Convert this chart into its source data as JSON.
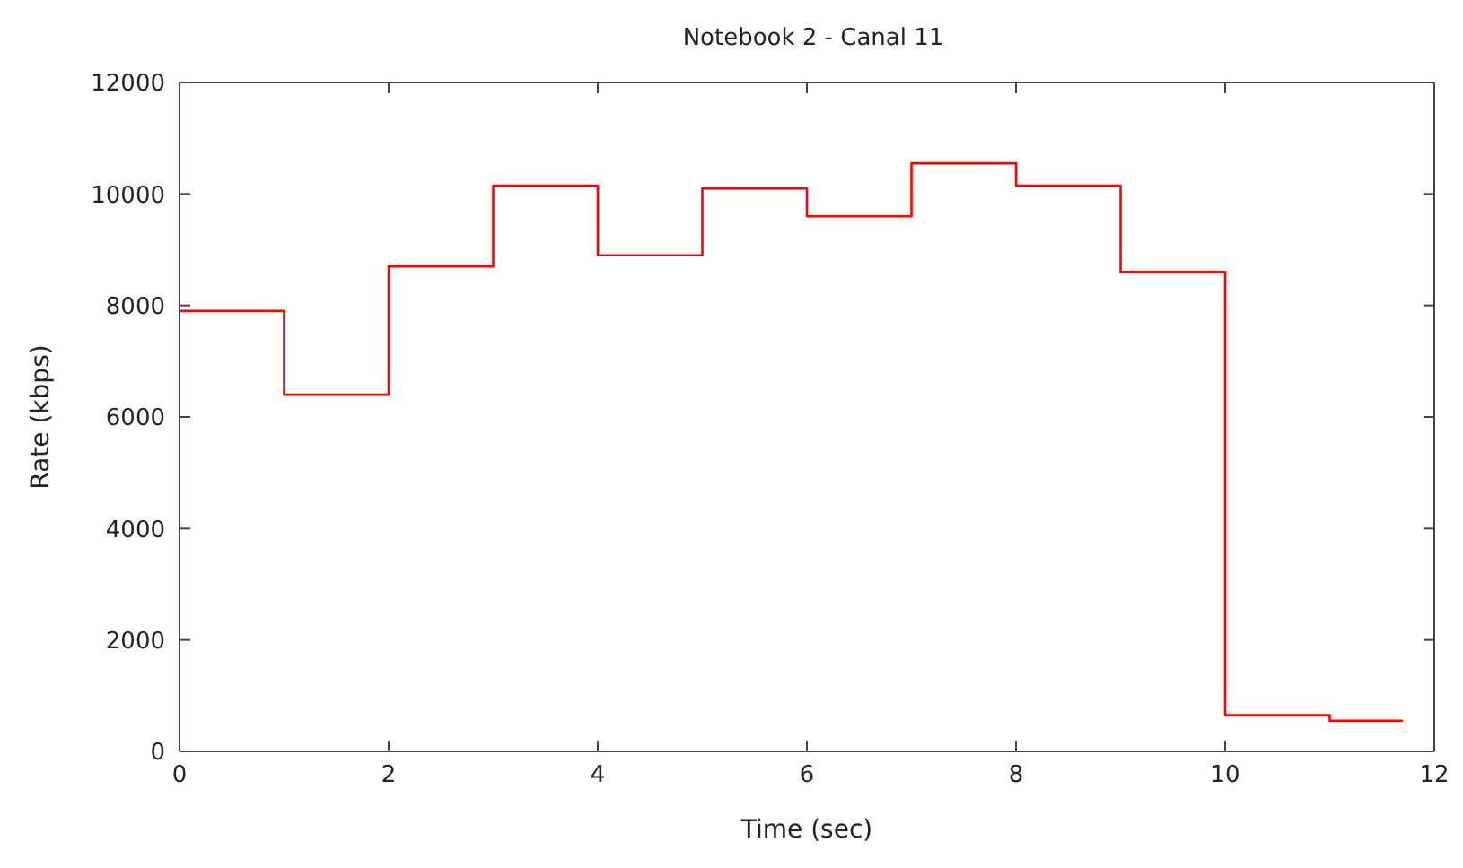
{
  "chart_data": {
    "type": "step",
    "title": "Notebook 2 - Canal 11",
    "xlabel": "Time (sec)",
    "ylabel": "Rate (kbps)",
    "x": [
      0,
      1,
      2,
      3,
      4,
      5,
      6,
      7,
      8,
      9,
      10,
      11,
      11.7
    ],
    "series": [
      {
        "color": "#ff0000",
        "values": [
          7900,
          6400,
          8700,
          10150,
          8900,
          10100,
          9600,
          10550,
          10150,
          8600,
          650,
          550,
          550
        ]
      }
    ],
    "xlim": [
      0,
      12
    ],
    "xticks": [
      0,
      2,
      4,
      6,
      8,
      10,
      12
    ],
    "ylim": [
      0,
      12000
    ],
    "yticks": [
      0,
      2000,
      4000,
      6000,
      8000,
      10000,
      12000
    ],
    "grid": false,
    "legend": false
  }
}
